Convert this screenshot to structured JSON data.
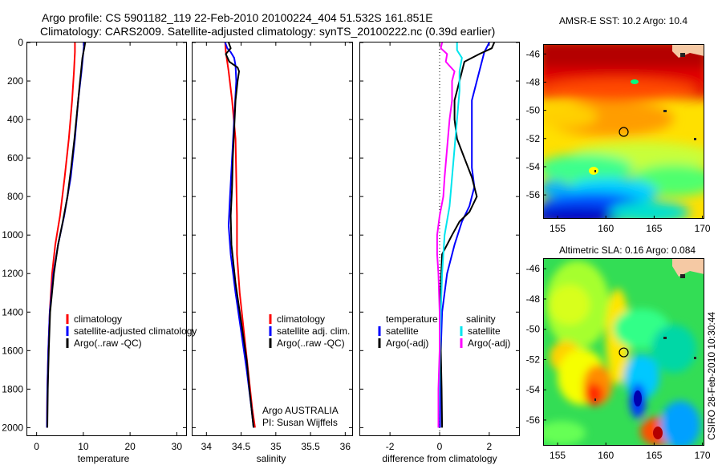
{
  "header": {
    "line1": "Argo profile: CS 5901182_119 22-Feb-2010 20100224_404 51.532S 161.851E",
    "line2": "Climatology: CARS2009. Satellite-adjusted climatology: synTS_20100222.nc (0.39d earlier)"
  },
  "colors": {
    "climatology": "#ff0000",
    "satellite": "#0000ff",
    "argo": "#000000",
    "sal_satellite": "#00e5ee",
    "sal_argo": "#ff00ff"
  },
  "chart_data": [
    {
      "id": "temperature",
      "type": "line",
      "xlabel": "temperature",
      "xlim": [
        -2,
        32
      ],
      "xticks": [
        0,
        10,
        20,
        30
      ],
      "ylim": [
        2040,
        0
      ],
      "yticks": [
        0,
        200,
        400,
        600,
        800,
        1000,
        1200,
        1400,
        1600,
        1800,
        2000
      ],
      "legend": [
        "climatology",
        "satellite-adjusted climatology",
        "Argo(..raw -QC)"
      ],
      "series": [
        {
          "name": "climatology",
          "color": "#ff0000",
          "points": [
            [
              8.2,
              0
            ],
            [
              8.2,
              50
            ],
            [
              8.0,
              150
            ],
            [
              7.6,
              300
            ],
            [
              6.9,
              500
            ],
            [
              6.0,
              700
            ],
            [
              5.0,
              900
            ],
            [
              4.0,
              1050
            ],
            [
              3.3,
              1200
            ],
            [
              2.8,
              1400
            ],
            [
              2.5,
              1600
            ],
            [
              2.3,
              1800
            ],
            [
              2.2,
              2000
            ]
          ]
        },
        {
          "name": "satellite-adjusted climatology",
          "color": "#0000ff",
          "points": [
            [
              10.2,
              0
            ],
            [
              10.0,
              50
            ],
            [
              9.6,
              150
            ],
            [
              8.9,
              300
            ],
            [
              8.2,
              500
            ],
            [
              7.3,
              700
            ],
            [
              5.9,
              900
            ],
            [
              4.6,
              1050
            ],
            [
              3.6,
              1200
            ],
            [
              2.8,
              1400
            ],
            [
              2.5,
              1600
            ],
            [
              2.3,
              1800
            ],
            [
              2.2,
              2000
            ]
          ]
        },
        {
          "name": "Argo(..raw -QC)",
          "color": "#000000",
          "points": [
            [
              10.4,
              0
            ],
            [
              10.2,
              30
            ],
            [
              9.8,
              80
            ],
            [
              9.3,
              200
            ],
            [
              8.7,
              350
            ],
            [
              8.1,
              500
            ],
            [
              7.4,
              650
            ],
            [
              6.6,
              800
            ],
            [
              5.6,
              930
            ],
            [
              4.6,
              1050
            ],
            [
              3.7,
              1200
            ],
            [
              2.9,
              1400
            ],
            [
              2.6,
              1600
            ],
            [
              2.4,
              1800
            ],
            [
              2.3,
              2000
            ]
          ]
        }
      ]
    },
    {
      "id": "salinity",
      "type": "line",
      "xlabel": "salinity",
      "xlim": [
        33.8,
        36.1
      ],
      "xticks": [
        34,
        34.5,
        35,
        35.5,
        36
      ],
      "ylim": [
        2040,
        0
      ],
      "legend": [
        "climatology",
        "satellite adj. clim.",
        "Argo(..raw -QC)"
      ],
      "annotation": [
        "Argo AUSTRALIA",
        "PI: Susan Wijffels"
      ],
      "series": [
        {
          "name": "climatology",
          "color": "#ff0000",
          "points": [
            [
              34.27,
              0
            ],
            [
              34.28,
              50
            ],
            [
              34.32,
              150
            ],
            [
              34.37,
              300
            ],
            [
              34.42,
              500
            ],
            [
              34.43,
              700
            ],
            [
              34.44,
              900
            ],
            [
              34.44,
              1100
            ],
            [
              34.48,
              1300
            ],
            [
              34.54,
              1500
            ],
            [
              34.6,
              1700
            ],
            [
              34.66,
              1900
            ],
            [
              34.7,
              2000
            ]
          ]
        },
        {
          "name": "satellite adj. clim.",
          "color": "#0000ff",
          "points": [
            [
              34.27,
              0
            ],
            [
              34.3,
              30
            ],
            [
              34.35,
              50
            ],
            [
              34.4,
              80
            ],
            [
              34.42,
              120
            ],
            [
              34.43,
              200
            ],
            [
              34.4,
              400
            ],
            [
              34.37,
              600
            ],
            [
              34.34,
              800
            ],
            [
              34.32,
              950
            ],
            [
              34.35,
              1100
            ],
            [
              34.42,
              1300
            ],
            [
              34.5,
              1500
            ],
            [
              34.58,
              1700
            ],
            [
              34.65,
              1900
            ],
            [
              34.68,
              2000
            ]
          ]
        },
        {
          "name": "Argo(..raw -QC)",
          "color": "#000000",
          "points": [
            [
              34.32,
              0
            ],
            [
              34.35,
              30
            ],
            [
              34.28,
              60
            ],
            [
              34.33,
              100
            ],
            [
              34.45,
              130
            ],
            [
              34.47,
              150
            ],
            [
              34.45,
              200
            ],
            [
              34.42,
              300
            ],
            [
              34.4,
              450
            ],
            [
              34.38,
              600
            ],
            [
              34.37,
              750
            ],
            [
              34.35,
              900
            ],
            [
              34.36,
              1050
            ],
            [
              34.42,
              1250
            ],
            [
              34.5,
              1450
            ],
            [
              34.58,
              1650
            ],
            [
              34.62,
              1800
            ],
            [
              34.68,
              2000
            ]
          ]
        }
      ]
    },
    {
      "id": "difference",
      "type": "line",
      "xlabel": "difference from climatology",
      "xlim": [
        -3.2,
        3.2
      ],
      "xticks": [
        -2,
        0,
        2
      ],
      "ylim": [
        2040,
        0
      ],
      "legend_titles": [
        "temperature",
        "salinity"
      ],
      "legend": [
        "satellite",
        "Argo(-adj)",
        "satellite",
        "Argo(-adj)"
      ],
      "series": [
        {
          "name": "temperature satellite",
          "color": "#0000ff",
          "points": [
            [
              2.0,
              0
            ],
            [
              1.8,
              50
            ],
            [
              1.6,
              150
            ],
            [
              1.3,
              300
            ],
            [
              1.3,
              500
            ],
            [
              1.3,
              650
            ],
            [
              1.4,
              750
            ],
            [
              1.2,
              850
            ],
            [
              0.9,
              930
            ],
            [
              0.6,
              1050
            ],
            [
              0.3,
              1200
            ],
            [
              0.1,
              1400
            ],
            [
              0.05,
              1600
            ],
            [
              0.02,
              1800
            ],
            [
              0.02,
              2000
            ]
          ]
        },
        {
          "name": "temperature Argo(-adj)",
          "color": "#000000",
          "points": [
            [
              2.2,
              0
            ],
            [
              2.1,
              30
            ],
            [
              1.6,
              60
            ],
            [
              1.0,
              100
            ],
            [
              0.8,
              200
            ],
            [
              0.6,
              300
            ],
            [
              0.6,
              400
            ],
            [
              0.7,
              500
            ],
            [
              1.0,
              600
            ],
            [
              1.3,
              700
            ],
            [
              1.5,
              800
            ],
            [
              1.2,
              880
            ],
            [
              0.8,
              930
            ],
            [
              0.5,
              1000
            ],
            [
              0.1,
              1100
            ],
            [
              0.0,
              1400
            ],
            [
              0.05,
              1600
            ],
            [
              0.08,
              1800
            ],
            [
              0.1,
              2000
            ]
          ]
        },
        {
          "name": "salinity satellite",
          "color": "#00e5ee",
          "points": [
            [
              0.7,
              0
            ],
            [
              0.7,
              40
            ],
            [
              0.9,
              80
            ],
            [
              0.8,
              150
            ],
            [
              0.8,
              250
            ],
            [
              0.7,
              400
            ],
            [
              0.6,
              550
            ],
            [
              0.5,
              700
            ],
            [
              0.4,
              850
            ],
            [
              0.2,
              1000
            ],
            [
              0.1,
              1200
            ],
            [
              0.05,
              1400
            ],
            [
              0.0,
              1700
            ],
            [
              -0.05,
              2000
            ]
          ]
        },
        {
          "name": "salinity Argo(-adj)",
          "color": "#ff00ff",
          "points": [
            [
              0.1,
              0
            ],
            [
              0.05,
              30
            ],
            [
              0.3,
              60
            ],
            [
              0.25,
              100
            ],
            [
              0.6,
              150
            ],
            [
              0.5,
              200
            ],
            [
              0.5,
              300
            ],
            [
              0.4,
              400
            ],
            [
              0.3,
              550
            ],
            [
              0.2,
              700
            ],
            [
              0.15,
              800
            ],
            [
              0.0,
              900
            ],
            [
              -0.1,
              1000
            ],
            [
              -0.1,
              1100
            ],
            [
              -0.05,
              1200
            ],
            [
              0.0,
              1400
            ],
            [
              0.0,
              1600
            ],
            [
              -0.05,
              1800
            ],
            [
              -0.05,
              2000
            ]
          ]
        }
      ]
    },
    {
      "id": "sst-map",
      "type": "heatmap",
      "title": "AMSR-E SST: 10.2 Argo: 10.4",
      "xlim": [
        153.5,
        170.2
      ],
      "ylim": [
        -57.7,
        -45.3
      ],
      "xticks": [
        155,
        160,
        165,
        170
      ],
      "yticks": [
        -46,
        -48,
        -50,
        -52,
        -54,
        -56
      ],
      "marker": [
        161.85,
        -51.53
      ]
    },
    {
      "id": "sla-map",
      "type": "heatmap",
      "title": "Altimetric SLA: 0.16 Argo: 0.084",
      "xlim": [
        153.5,
        170.2
      ],
      "ylim": [
        -57.7,
        -45.3
      ],
      "xticks": [
        155,
        160,
        165,
        170
      ],
      "yticks": [
        -46,
        -48,
        -50,
        -52,
        -54,
        -56
      ],
      "marker": [
        161.85,
        -51.53
      ]
    }
  ],
  "side_label": "CSIRO 28-Feb-2010 10:30:44"
}
